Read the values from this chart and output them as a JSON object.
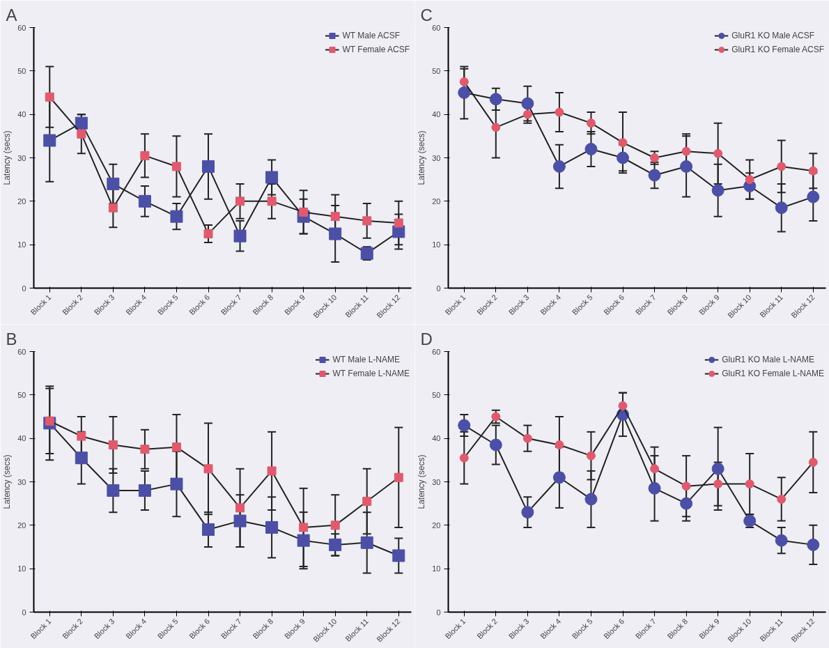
{
  "chart_data": [
    {
      "type": "line",
      "title": "A",
      "ylabel": "Latency (secs)",
      "categories": [
        "Block 1",
        "Block 2",
        "Block 3",
        "Block 4",
        "Block 5",
        "Block 6",
        "Block 7",
        "Block 8",
        "Block 9",
        "Block 10",
        "Block 11",
        "Block 12"
      ],
      "ylim": [
        0,
        60
      ],
      "yticks": [
        0,
        10,
        20,
        30,
        40,
        50,
        60
      ],
      "marker": "square",
      "legend": "top right",
      "grid": false,
      "series": [
        {
          "name": "WT Male ACSF",
          "color": "#4b4fa6",
          "values": [
            34,
            38,
            24,
            20,
            16.5,
            28,
            12,
            25.5,
            16.5,
            12.5,
            8,
            13
          ],
          "errors": [
            9.5,
            2,
            4.5,
            3.5,
            3,
            7.5,
            3.5,
            4,
            4,
            6.5,
            1.5,
            4
          ]
        },
        {
          "name": "WT Female ACSF",
          "color": "#e05a6e",
          "values": [
            44,
            35.5,
            18.5,
            30.5,
            28,
            12.5,
            20,
            20,
            17.5,
            16.5,
            15.5,
            15
          ],
          "errors": [
            7,
            4.5,
            4.5,
            5,
            7,
            2,
            4,
            4,
            5,
            5,
            4,
            5
          ]
        }
      ]
    },
    {
      "type": "line",
      "title": "C",
      "ylabel": "Latency (secs)",
      "categories": [
        "Block 1",
        "Block 2",
        "Block 3",
        "Block 4",
        "Block 5",
        "Block 6",
        "Block 7",
        "Block 8",
        "Block 9",
        "Block 10",
        "Block 11",
        "Block 12"
      ],
      "ylim": [
        0,
        60
      ],
      "yticks": [
        0,
        10,
        20,
        30,
        40,
        50,
        60
      ],
      "marker": "circle",
      "legend": "top right",
      "grid": false,
      "series": [
        {
          "name": "GluR1 KO Male ACSF",
          "color": "#4b4fa6",
          "values": [
            45,
            43.5,
            42.5,
            28,
            32,
            30,
            26,
            28,
            22.5,
            23.5,
            18.5,
            21
          ],
          "errors": [
            6,
            2.5,
            4,
            5,
            4,
            3,
            3,
            7,
            6,
            3,
            5.5,
            5.5
          ]
        },
        {
          "name": "GluR1 KO Female ACSF",
          "color": "#e05a6e",
          "values": [
            47.5,
            37,
            40,
            40.5,
            38,
            33.5,
            30,
            31.5,
            31,
            25,
            28,
            27
          ],
          "errors": [
            3,
            7,
            2,
            4.5,
            2.5,
            7,
            1.5,
            4,
            7,
            4.5,
            6,
            4
          ]
        }
      ]
    },
    {
      "type": "line",
      "title": "B",
      "ylabel": "Latency (secs)",
      "categories": [
        "Block 1",
        "Block 2",
        "Block 3",
        "Block 4",
        "Block 5",
        "Block 6",
        "Block 7",
        "Block 8",
        "Block 9",
        "Block 10",
        "Block 11",
        "Block 12"
      ],
      "ylim": [
        0,
        60
      ],
      "yticks": [
        0,
        10,
        20,
        30,
        40,
        50,
        60
      ],
      "marker": "square",
      "legend": "top right",
      "grid": false,
      "series": [
        {
          "name": "WT Male L-NAME",
          "color": "#4b4fa6",
          "values": [
            43.5,
            35.5,
            28,
            28,
            29.5,
            19,
            21,
            19.5,
            16.5,
            15.5,
            16,
            13
          ],
          "errors": [
            8.5,
            6,
            5,
            4.5,
            7.5,
            4,
            6,
            7,
            6.5,
            2.5,
            7,
            4
          ]
        },
        {
          "name": "WT Female L-NAME",
          "color": "#e05a6e",
          "values": [
            44,
            40.5,
            38.5,
            37.5,
            38,
            33,
            24,
            32.5,
            19.5,
            20,
            25.5,
            31
          ],
          "errors": [
            7.5,
            4.5,
            6.5,
            4.5,
            7.5,
            10.5,
            9,
            9,
            9,
            7,
            7.5,
            11.5
          ]
        }
      ]
    },
    {
      "type": "line",
      "title": "D",
      "ylabel": "Latency (secs)",
      "categories": [
        "Block 1",
        "Block 2",
        "Block 3",
        "Block 4",
        "Block 5",
        "Block 6",
        "Block 7",
        "Block 8",
        "Block 9",
        "Block 10",
        "Block 11",
        "Block 12"
      ],
      "ylim": [
        0,
        60
      ],
      "yticks": [
        0,
        10,
        20,
        30,
        40,
        50,
        60
      ],
      "marker": "circle",
      "legend": "top right",
      "grid": false,
      "series": [
        {
          "name": "GluR1 KO Male L-NAME",
          "color": "#4b4fa6",
          "values": [
            43,
            38.5,
            23,
            31,
            26,
            45.5,
            28.5,
            25,
            33,
            21,
            16.5,
            15.5
          ],
          "errors": [
            2.5,
            4.5,
            3.5,
            7,
            6.5,
            5,
            7.5,
            4,
            9.5,
            1.5,
            3,
            4.5
          ]
        },
        {
          "name": "GluR1 KO Female L-NAME",
          "color": "#e05a6e",
          "values": [
            35.5,
            45,
            40,
            38.5,
            36,
            47.5,
            33,
            29,
            29.5,
            29.5,
            26,
            34.5
          ],
          "errors": [
            6,
            1.5,
            3,
            6.5,
            5.5,
            3,
            5,
            7,
            5,
            7,
            5,
            7
          ]
        }
      ]
    }
  ]
}
